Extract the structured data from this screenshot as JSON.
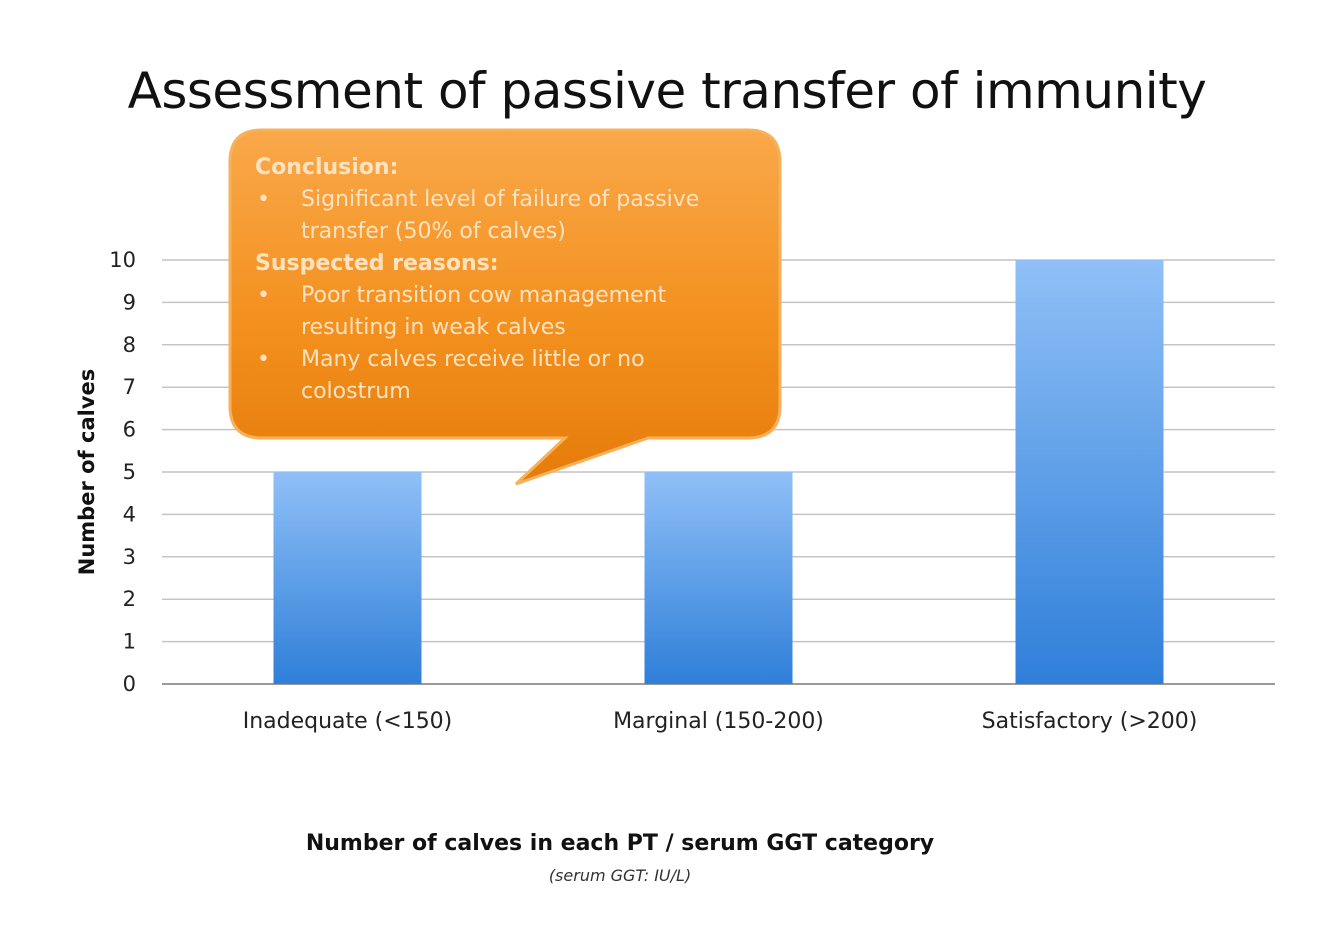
{
  "slide": {
    "title": "Assessment of passive transfer of immunity"
  },
  "callout": {
    "heading1": "Conclusion:",
    "items1": [
      "Significant level of failure of passive transfer  (50% of calves)"
    ],
    "heading2": "Suspected reasons:",
    "items2": [
      "Poor transition cow management resulting in weak calves",
      "Many calves receive little or no colostrum"
    ],
    "color": "#f3901e"
  },
  "chart_data": {
    "type": "bar",
    "categories": [
      "Inadequate (<150)",
      "Marginal (150-200)",
      "Satisfactory (>200)"
    ],
    "values": [
      5,
      5,
      10
    ],
    "ylabel": "Number of calves",
    "xlabel": "Number of calves in each PT / serum GGT category",
    "xlabel_sub": "(serum GGT: IU/L)",
    "ylim": [
      0,
      10
    ],
    "yticks": [
      0,
      1,
      2,
      3,
      4,
      5,
      6,
      7,
      8,
      9,
      10
    ],
    "grid": true,
    "legend": "none",
    "bar_color": "#3d8ae0"
  }
}
